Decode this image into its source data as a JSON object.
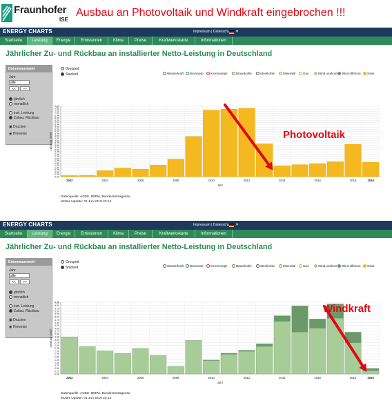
{
  "banner": {
    "logo": "Fraunhofer",
    "logo_sub": "ISE",
    "headline": "Ausbau an Photovoltaik und Windkraft eingebrochen !!!"
  },
  "ec": {
    "title": "ENERGY CHARTS",
    "links": "Impressum | Datenschutz",
    "nav": [
      "Startseite",
      "Leistung",
      "Energie",
      "Emissionen",
      "Klima",
      "Preise",
      "Kraftwerkskarte",
      "Informationen"
    ],
    "active_nav": 1,
    "page_title": "Jährlicher Zu- und Rückbau an installierter Netto-Leistung in Deutschland"
  },
  "sidebar": {
    "head": "Datumsauswahl",
    "year_label": "Jahr",
    "year_value": "alle",
    "prev": "<<",
    "next": ">>",
    "annual": "jährlich",
    "monthly": "monatlich",
    "inst": "inst. Leistung",
    "change": "Zubau, Rückbau",
    "print": "Drucken",
    "info": "Hinweise"
  },
  "modes": {
    "grouped": "Grouped",
    "stacked": "Stacked"
  },
  "legend": [
    "Wasserkraft",
    "Biomasse",
    "Kernenergie",
    "Braunkohle",
    "Steinkohle",
    "Mineralöl",
    "Gas",
    "Wind onshore",
    "Wind offshore",
    "Solar"
  ],
  "colors": {
    "legend": [
      "#3a5fcd",
      "#2e8b57",
      "#e03020",
      "#8b6b3a",
      "#555555",
      "#c87830",
      "#e8a020",
      "#a8cc98",
      "#6a9a6a",
      "#f4b820"
    ],
    "solar": "#f4b820",
    "onshore": "#a8cc98",
    "offshore": "#6a9a6a",
    "arrow": "#e30613",
    "title": "#2e8b57"
  },
  "source": "Datenquelle: AGEE, BMWi, Bundesnetzagentur",
  "update": "letztes Update: 01 Jun 2019 23:14",
  "chart_data": [
    {
      "type": "bar",
      "title": "",
      "xlabel": "Jahr",
      "ylabel": "Leistung (GW)",
      "annotation": "Photovoltaik",
      "categories": [
        "2002",
        "2003",
        "2004",
        "2005",
        "2006",
        "2007",
        "2008",
        "2009",
        "2010",
        "2011",
        "2012",
        "2013",
        "2014",
        "2015",
        "2016",
        "2017",
        "2018",
        "2019"
      ],
      "series": [
        {
          "name": "Solar",
          "values": [
            0.12,
            0.14,
            0.66,
            0.95,
            0.84,
            1.28,
            1.95,
            4.45,
            7.38,
            7.49,
            7.6,
            3.64,
            1.19,
            1.33,
            1.44,
            1.65,
            3.59,
            1.59
          ]
        }
      ],
      "ylim": [
        0,
        7.81
      ],
      "yticks": [
        "0.00",
        "0.25",
        "0.50",
        "0.75",
        "1.00",
        "1.25",
        "1.50",
        "1.75",
        "2.00",
        "2.25",
        "2.50",
        "2.75",
        "3.00",
        "3.25",
        "3.50",
        "3.75",
        "4.00",
        "4.25",
        "4.50",
        "4.75",
        "5.00",
        "5.25",
        "5.50",
        "5.75",
        "6.00",
        "6.25",
        "6.50",
        "6.75",
        "7.00",
        "7.25",
        "7.50",
        "7.81"
      ],
      "xticks": [
        "2002",
        "2004",
        "2006",
        "2008",
        "2010",
        "2012",
        "2014",
        "2016",
        "2018",
        "2019"
      ],
      "grid": true
    },
    {
      "type": "bar",
      "title": "",
      "xlabel": "Jahr",
      "ylabel": "Leistung (GW)",
      "annotation": "Windkraft",
      "stacked": true,
      "categories": [
        "2002",
        "2003",
        "2004",
        "2005",
        "2006",
        "2007",
        "2008",
        "2009",
        "2010",
        "2011",
        "2012",
        "2013",
        "2014",
        "2015",
        "2016",
        "2017",
        "2018",
        "2019"
      ],
      "series": [
        {
          "name": "Wind onshore",
          "values": [
            3.25,
            2.4,
            2.03,
            1.81,
            2.23,
            1.63,
            0.66,
            2.94,
            1.17,
            1.72,
            1.98,
            2.41,
            4.6,
            3.66,
            4.0,
            4.87,
            2.73,
            0.28
          ]
        },
        {
          "name": "Wind offshore",
          "values": [
            0,
            0,
            0,
            0,
            0,
            0,
            0,
            0,
            0.05,
            0.1,
            0.1,
            0.24,
            0.5,
            2.3,
            0.82,
            1.26,
            0.93,
            0.21
          ]
        }
      ],
      "ylim": [
        0,
        6.28
      ],
      "yticks": [
        "0.00",
        "0.25",
        "0.50",
        "0.75",
        "1.00",
        "1.25",
        "1.50",
        "1.75",
        "2.00",
        "2.25",
        "2.50",
        "2.75",
        "3.00",
        "3.25",
        "3.50",
        "3.75",
        "4.00",
        "4.25",
        "4.50",
        "4.75",
        "5.00",
        "5.25",
        "5.50",
        "5.75",
        "6.00",
        "6.28"
      ],
      "xticks": [
        "2002",
        "2004",
        "2006",
        "2008",
        "2010",
        "2012",
        "2014",
        "2016",
        "2018",
        "2019"
      ],
      "grid": true
    }
  ]
}
